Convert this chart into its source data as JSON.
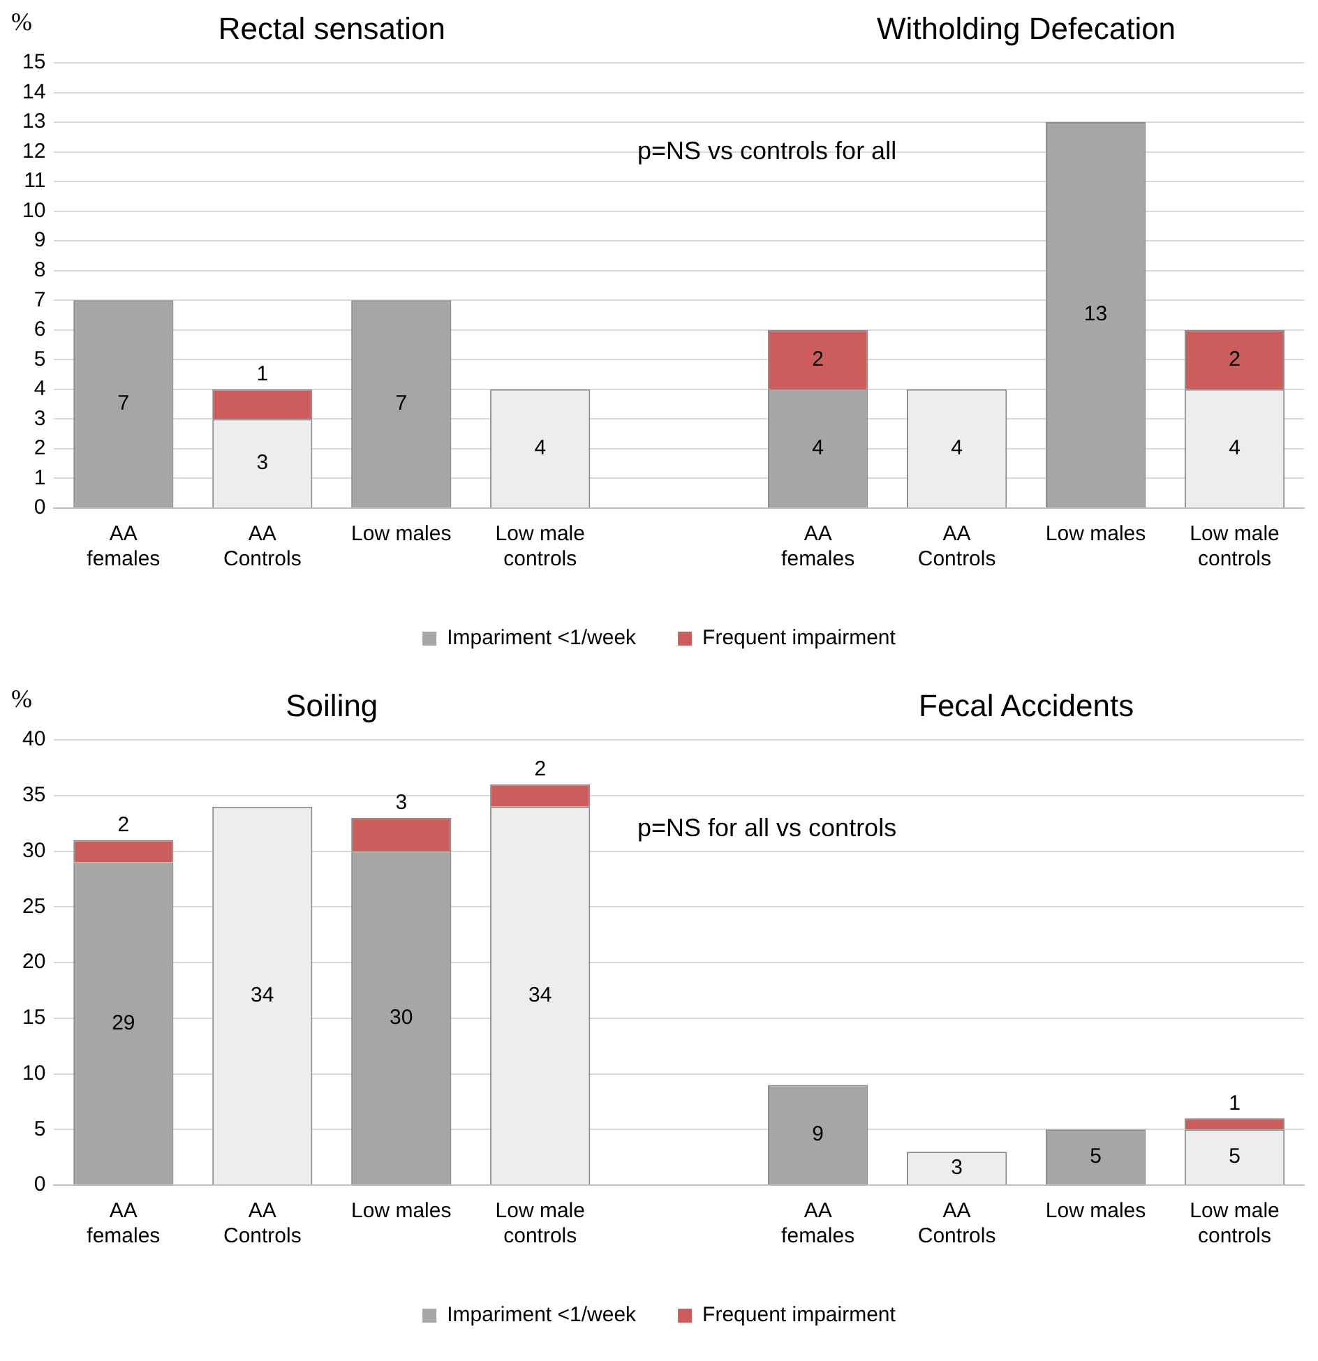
{
  "chart_data": [
    {
      "type": "bar",
      "stacked": true,
      "ylabel": "%",
      "categories": [
        "AA females",
        "AA Controls",
        "Low males",
        "Low male controls",
        null,
        "AA females",
        "AA Controls",
        "Low males",
        "Low male controls"
      ],
      "series": [
        {
          "name": "Impariment <1/week",
          "color": "#a6a6a6",
          "colors": [
            "#a6a6a6",
            "#ededed",
            "#a6a6a6",
            "#ededed",
            null,
            "#a6a6a6",
            "#ededed",
            "#a6a6a6",
            "#ededed"
          ],
          "values": [
            7,
            3,
            7,
            4,
            null,
            4,
            4,
            13,
            4
          ]
        },
        {
          "name": "Frequent impairment",
          "color": "#cd5c5c",
          "values": [
            null,
            1,
            null,
            null,
            null,
            2,
            null,
            null,
            2
          ]
        }
      ],
      "ylim": [
        0,
        15
      ],
      "yticks": [
        0,
        1,
        2,
        3,
        4,
        5,
        6,
        7,
        8,
        9,
        10,
        11,
        12,
        13,
        14,
        15
      ],
      "grid": "y",
      "legend": "bottom",
      "data_labels": true,
      "annotations": [
        "Rectal sensation",
        "Witholding Defecation",
        "p=NS vs controls for all"
      ]
    },
    {
      "type": "bar",
      "stacked": true,
      "ylabel": "%",
      "categories": [
        "AA females",
        "AA Controls",
        "Low males",
        "Low male controls",
        null,
        "AA females",
        "AA Controls",
        "Low males",
        "Low male controls"
      ],
      "series": [
        {
          "name": "Impariment <1/week",
          "color": "#a6a6a6",
          "colors": [
            "#a6a6a6",
            "#ededed",
            "#a6a6a6",
            "#ededed",
            null,
            "#a6a6a6",
            "#ededed",
            "#a6a6a6",
            "#ededed"
          ],
          "values": [
            29,
            34,
            30,
            34,
            null,
            9,
            3,
            5,
            5
          ]
        },
        {
          "name": "Frequent impairment",
          "color": "#cd5c5c",
          "values": [
            2,
            null,
            3,
            2,
            null,
            null,
            null,
            null,
            1
          ]
        }
      ],
      "ylim": [
        0,
        40
      ],
      "yticks": [
        0,
        5,
        10,
        15,
        20,
        25,
        30,
        35,
        40
      ],
      "grid": "y",
      "legend": "bottom",
      "data_labels": true,
      "annotations": [
        "Soiling",
        "Fecal Accidents",
        "p=NS for all vs controls"
      ]
    }
  ]
}
